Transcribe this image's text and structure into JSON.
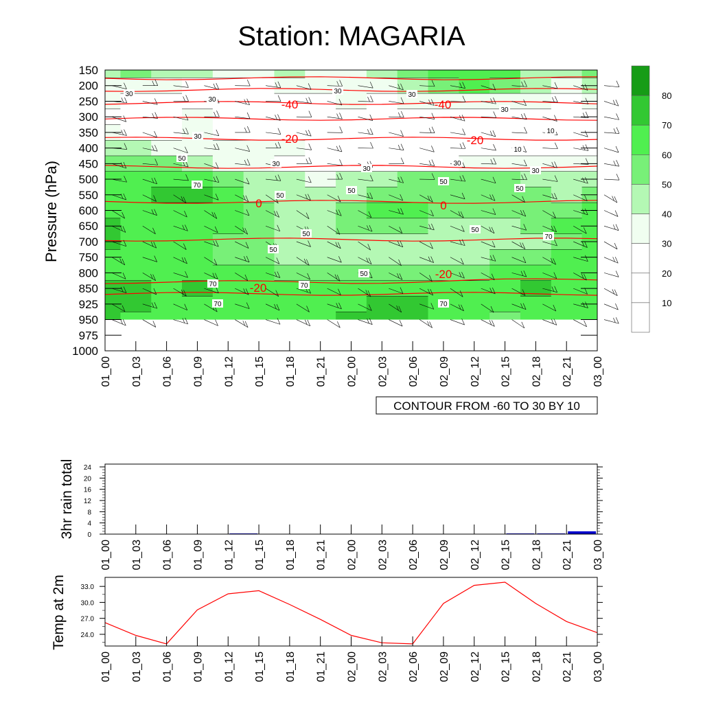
{
  "title": "Station: MAGARIA",
  "time_labels": [
    "01_00",
    "01_03",
    "01_06",
    "01_09",
    "01_12",
    "01_15",
    "01_18",
    "01_21",
    "02_00",
    "02_03",
    "02_06",
    "02_09",
    "02_12",
    "02_15",
    "02_18",
    "02_21",
    "03_00"
  ],
  "colors": {
    "humidity": [
      "#ffffff",
      "#ffffff",
      "#ffffff",
      "#f0fef0",
      "#b4f8b4",
      "#78f078",
      "#50ef50",
      "#32c832",
      "#169c16"
    ],
    "temp_contour": "#ff0000",
    "rain_bar": "#0000cc",
    "temp_line": "#ff0000",
    "wind": "#000000"
  },
  "chart_data": [
    {
      "type": "heatmap",
      "name": "cross-section",
      "ylabel": "Pressure (hPa)",
      "y_ticks": [
        "150",
        "200",
        "250",
        "300",
        "350",
        "400",
        "450",
        "500",
        "550",
        "600",
        "650",
        "700",
        "750",
        "800",
        "850",
        "925",
        "950",
        "975",
        "1000"
      ],
      "humidity_levels": [
        10,
        20,
        30,
        40,
        50,
        60,
        70,
        80
      ],
      "legend_labels": [
        "10",
        "20",
        "30",
        "40",
        "50",
        "60",
        "70",
        "80"
      ],
      "humidity_rows": [
        [
          45,
          50,
          45,
          40,
          38,
          35,
          40,
          35,
          30,
          40,
          55,
          60,
          65,
          60,
          45,
          42,
          55
        ],
        [
          38,
          35,
          30,
          28,
          25,
          25,
          30,
          35,
          30,
          35,
          45,
          50,
          60,
          50,
          40,
          38,
          45
        ],
        [
          30,
          28,
          28,
          28,
          25,
          25,
          28,
          28,
          30,
          28,
          30,
          35,
          35,
          30,
          30,
          28,
          30
        ],
        [
          28,
          25,
          28,
          30,
          28,
          25,
          22,
          25,
          25,
          28,
          25,
          25,
          25,
          28,
          25,
          25,
          25
        ],
        [
          30,
          28,
          28,
          30,
          28,
          25,
          25,
          25,
          25,
          25,
          25,
          25,
          25,
          22,
          18,
          15,
          25
        ],
        [
          45,
          40,
          35,
          35,
          30,
          30,
          30,
          25,
          25,
          25,
          25,
          25,
          25,
          20,
          15,
          12,
          25
        ],
        [
          55,
          50,
          52,
          45,
          38,
          32,
          28,
          25,
          22,
          25,
          28,
          25,
          30,
          35,
          35,
          30,
          38
        ],
        [
          62,
          60,
          62,
          65,
          58,
          45,
          40,
          38,
          40,
          48,
          50,
          52,
          52,
          50,
          48,
          45,
          48
        ],
        [
          65,
          62,
          72,
          72,
          62,
          48,
          40,
          40,
          48,
          55,
          58,
          58,
          58,
          52,
          50,
          48,
          50
        ],
        [
          62,
          60,
          62,
          65,
          60,
          50,
          40,
          42,
          55,
          60,
          62,
          58,
          55,
          55,
          55,
          58,
          62
        ],
        [
          72,
          65,
          62,
          62,
          60,
          50,
          42,
          45,
          52,
          55,
          52,
          48,
          45,
          48,
          55,
          60,
          62
        ],
        [
          70,
          65,
          62,
          62,
          58,
          50,
          45,
          48,
          48,
          48,
          45,
          42,
          40,
          40,
          48,
          58,
          62
        ],
        [
          65,
          64,
          62,
          62,
          58,
          55,
          48,
          45,
          45,
          48,
          48,
          45,
          45,
          50,
          55,
          60,
          64
        ],
        [
          68,
          65,
          64,
          62,
          62,
          62,
          58,
          55,
          52,
          52,
          55,
          55,
          58,
          60,
          62,
          64,
          65
        ],
        [
          75,
          72,
          68,
          72,
          68,
          65,
          65,
          68,
          68,
          65,
          65,
          65,
          65,
          68,
          72,
          68,
          65
        ],
        [
          78,
          72,
          65,
          68,
          65,
          62,
          60,
          65,
          68,
          72,
          70,
          65,
          62,
          62,
          62,
          62,
          62
        ],
        [
          72,
          68,
          62,
          62,
          60,
          62,
          62,
          62,
          72,
          75,
          72,
          65,
          62,
          58,
          60,
          62,
          62
        ]
      ],
      "contour_label": "CONTOUR FROM -60 TO 30 BY 10",
      "humidity_contour_labels": [
        "30",
        "30",
        "30",
        "30",
        "30",
        "10",
        "10",
        "30",
        "30",
        "30",
        "30",
        "30",
        "50",
        "50",
        "50",
        "50",
        "50",
        "50",
        "50",
        "50",
        "50",
        "70",
        "70",
        "70",
        "70",
        "70",
        "70"
      ],
      "temp_contour_labels": [
        "-40",
        "-40",
        "-20",
        "-20",
        "0",
        "0",
        "-20",
        "-20"
      ]
    },
    {
      "type": "bar",
      "name": "rain",
      "ylabel": "3hr rain total",
      "y_ticks": [
        "0",
        "4",
        "8",
        "12",
        "16",
        "20",
        "24"
      ],
      "ylim": [
        0,
        25
      ],
      "categories": [
        "01_00",
        "01_03",
        "01_06",
        "01_09",
        "01_12",
        "01_15",
        "01_18",
        "01_21",
        "02_00",
        "02_03",
        "02_06",
        "02_09",
        "02_12",
        "02_15",
        "02_18",
        "02_21",
        "03_00"
      ],
      "values": [
        0,
        0,
        0,
        0,
        0,
        0.1,
        0,
        0,
        0,
        0,
        0,
        0,
        0,
        0,
        0.05,
        0.2,
        1.0
      ]
    },
    {
      "type": "line",
      "name": "temperature",
      "ylabel": "Temp at 2m",
      "y_ticks": [
        "24.0",
        "27.0",
        "30.0",
        "33.0"
      ],
      "ylim": [
        21.8,
        34.7
      ],
      "categories": [
        "01_00",
        "01_03",
        "01_06",
        "01_09",
        "01_12",
        "01_15",
        "01_18",
        "01_21",
        "02_00",
        "02_03",
        "02_06",
        "02_09",
        "02_12",
        "02_15",
        "02_18",
        "02_21",
        "03_00"
      ],
      "values": [
        26.2,
        23.8,
        22.2,
        28.6,
        31.6,
        32.2,
        29.6,
        26.8,
        23.8,
        22.4,
        22.2,
        29.8,
        33.2,
        33.8,
        29.8,
        26.4,
        24.3
      ]
    }
  ]
}
